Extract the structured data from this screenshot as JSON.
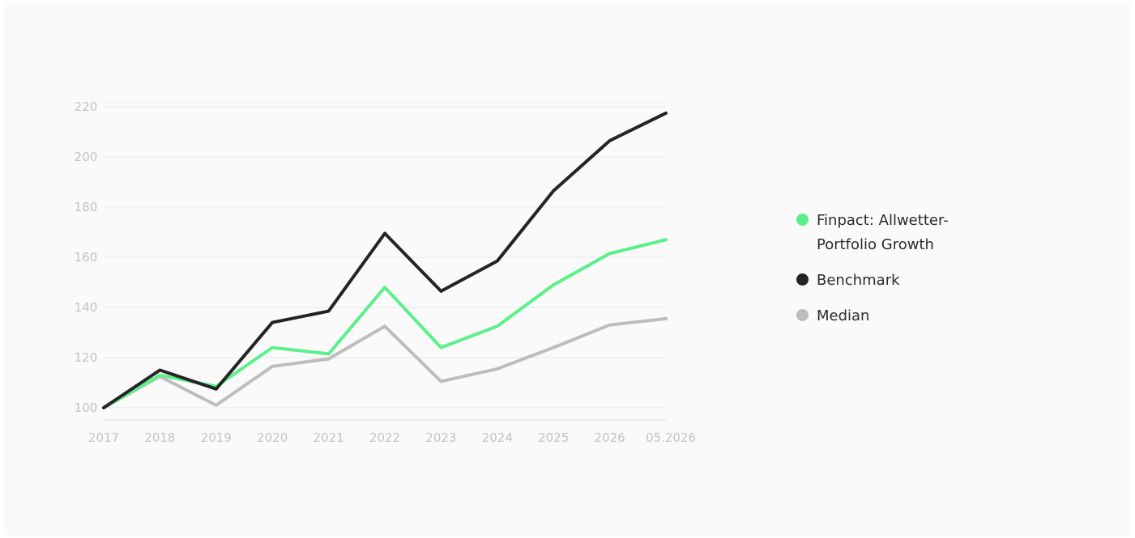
{
  "chart_data": {
    "type": "line",
    "title": "",
    "xlabel": "",
    "ylabel": "",
    "categories": [
      "2017",
      "2018",
      "2019",
      "2020",
      "2021",
      "2022",
      "2023",
      "2024",
      "2025",
      "2026",
      "05.2026"
    ],
    "ylim": [
      100,
      220
    ],
    "yticks": [
      100,
      120,
      140,
      160,
      180,
      200,
      220
    ],
    "grid": true,
    "legend_position": "right",
    "series": [
      {
        "name": "Finpact: Allwetter-Portfolio Growth",
        "color": "#5af08a",
        "values": [
          100,
          113,
          108.5,
          124,
          121.5,
          148,
          124,
          132.5,
          149,
          161.5,
          167
        ]
      },
      {
        "name": "Benchmark",
        "color": "#242424",
        "values": [
          100,
          115,
          107.5,
          134,
          138.5,
          169.5,
          146.5,
          158.5,
          186.5,
          206.5,
          217.5
        ]
      },
      {
        "name": "Median",
        "color": "#bdbdbd",
        "values": [
          100,
          112.5,
          101,
          116.5,
          119.5,
          132.5,
          110.5,
          115.5,
          124,
          133,
          135.5
        ]
      }
    ]
  }
}
